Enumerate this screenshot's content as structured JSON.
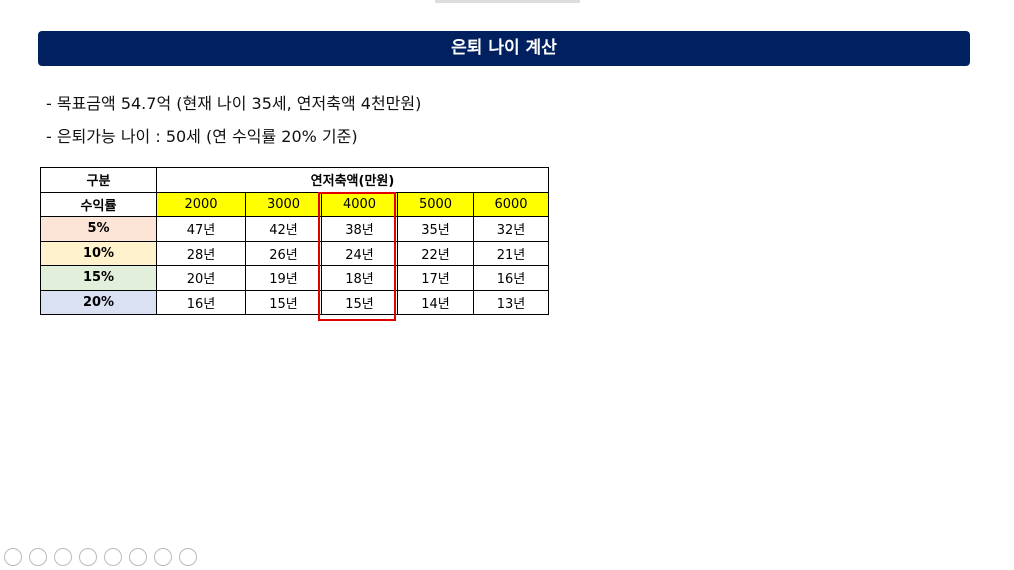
{
  "header": {
    "title": "은퇴 나이 계산"
  },
  "bullets": [
    "- 목표금액 54.7억 (현재 나이 35세, 연저축액 4천만원)",
    "- 은퇴가능 나이 : 50세 (연 수익률 20% 기준)"
  ],
  "table": {
    "corner": "구분",
    "group_header": "연저축액(만원)",
    "row_header_label": "수익률",
    "columns": [
      "2000",
      "3000",
      "4000",
      "5000",
      "6000"
    ],
    "rows": [
      {
        "label": "5%",
        "cells": [
          "47년",
          "42년",
          "38년",
          "35년",
          "32년"
        ]
      },
      {
        "label": "10%",
        "cells": [
          "28년",
          "26년",
          "24년",
          "22년",
          "21년"
        ]
      },
      {
        "label": "15%",
        "cells": [
          "20년",
          "19년",
          "18년",
          "17년",
          "16년"
        ]
      },
      {
        "label": "20%",
        "cells": [
          "16년",
          "15년",
          "15년",
          "14년",
          "13년"
        ]
      }
    ]
  }
}
